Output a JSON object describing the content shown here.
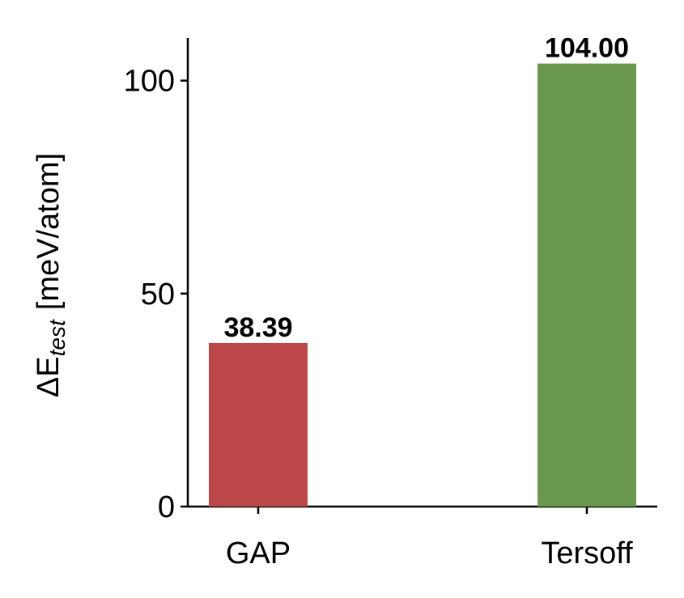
{
  "chart_data": {
    "type": "bar",
    "ylabel_parts": [
      "ΔE",
      "test",
      "[meV/atom]"
    ],
    "categories": [
      "GAP",
      "Tersoff"
    ],
    "values": [
      38.39,
      104.0
    ],
    "value_labels": [
      "38.39",
      "104.00"
    ],
    "colors": [
      "#bc4749",
      "#6a994e"
    ],
    "ylim": [
      0,
      110
    ],
    "yticks": [
      0,
      50,
      100
    ]
  }
}
